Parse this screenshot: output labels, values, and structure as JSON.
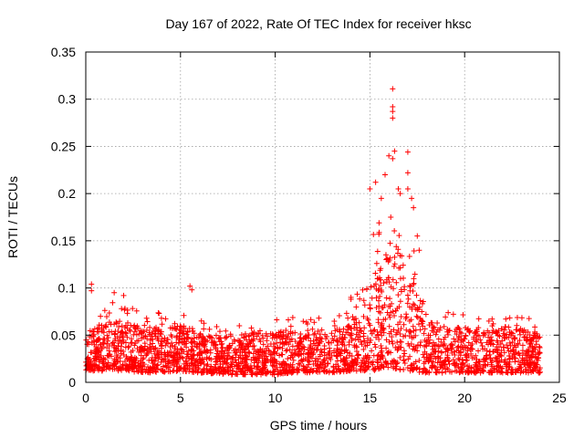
{
  "chart_data": {
    "type": "scatter",
    "title": "Day 167 of 2022, Rate Of TEC Index for receiver hksc",
    "xlabel": "GPS time / hours",
    "ylabel": "ROTI / TECUs",
    "xlim": [
      0,
      25
    ],
    "ylim": [
      0,
      0.35
    ],
    "x_ticks": [
      0,
      5,
      10,
      15,
      20,
      25
    ],
    "x_tick_labels": [
      "0",
      "5",
      "10",
      "15",
      "20",
      "25"
    ],
    "y_ticks": [
      0,
      0.05,
      0.1,
      0.15,
      0.2,
      0.25,
      0.3,
      0.35
    ],
    "y_tick_labels": [
      "0",
      "0.05",
      "0.1",
      "0.15",
      "0.2",
      "0.25",
      "0.3",
      "0.35"
    ],
    "grid": true,
    "marker": "+",
    "marker_color": "#ff0000",
    "series": [
      {
        "name": "ROTI",
        "envelope": [
          {
            "x": 0.0,
            "low": 0.012,
            "high": 0.06
          },
          {
            "x": 1.0,
            "low": 0.012,
            "high": 0.085
          },
          {
            "x": 2.0,
            "low": 0.012,
            "high": 0.085
          },
          {
            "x": 3.0,
            "low": 0.01,
            "high": 0.075
          },
          {
            "x": 4.0,
            "low": 0.01,
            "high": 0.075
          },
          {
            "x": 5.0,
            "low": 0.012,
            "high": 0.078
          },
          {
            "x": 6.0,
            "low": 0.01,
            "high": 0.07
          },
          {
            "x": 7.0,
            "low": 0.008,
            "high": 0.06
          },
          {
            "x": 8.0,
            "low": 0.008,
            "high": 0.065
          },
          {
            "x": 9.0,
            "low": 0.008,
            "high": 0.068
          },
          {
            "x": 10.0,
            "low": 0.008,
            "high": 0.07
          },
          {
            "x": 11.0,
            "low": 0.01,
            "high": 0.072
          },
          {
            "x": 12.0,
            "low": 0.01,
            "high": 0.072
          },
          {
            "x": 13.0,
            "low": 0.01,
            "high": 0.07
          },
          {
            "x": 14.0,
            "low": 0.012,
            "high": 0.08
          },
          {
            "x": 15.0,
            "low": 0.012,
            "high": 0.15
          },
          {
            "x": 16.0,
            "low": 0.015,
            "high": 0.19
          },
          {
            "x": 17.0,
            "low": 0.012,
            "high": 0.17
          },
          {
            "x": 18.0,
            "low": 0.01,
            "high": 0.09
          },
          {
            "x": 19.0,
            "low": 0.01,
            "high": 0.075
          },
          {
            "x": 20.0,
            "low": 0.01,
            "high": 0.075
          },
          {
            "x": 21.0,
            "low": 0.01,
            "high": 0.072
          },
          {
            "x": 22.0,
            "low": 0.01,
            "high": 0.075
          },
          {
            "x": 23.0,
            "low": 0.01,
            "high": 0.075
          },
          {
            "x": 24.0,
            "low": 0.01,
            "high": 0.065
          }
        ],
        "notable_points": [
          [
            0.3,
            0.104
          ],
          [
            0.3,
            0.097
          ],
          [
            1.5,
            0.095
          ],
          [
            2.0,
            0.092
          ],
          [
            5.5,
            0.102
          ],
          [
            5.6,
            0.098
          ],
          [
            14.0,
            0.09
          ],
          [
            14.0,
            0.088
          ],
          [
            15.0,
            0.205
          ],
          [
            15.3,
            0.212
          ],
          [
            15.6,
            0.195
          ],
          [
            15.8,
            0.22
          ],
          [
            16.0,
            0.24
          ],
          [
            16.1,
            0.175
          ],
          [
            16.2,
            0.311
          ],
          [
            16.2,
            0.292
          ],
          [
            16.2,
            0.287
          ],
          [
            16.2,
            0.28
          ],
          [
            16.3,
            0.245
          ],
          [
            16.2,
            0.237
          ],
          [
            16.5,
            0.205
          ],
          [
            16.6,
            0.2
          ],
          [
            17.0,
            0.244
          ],
          [
            17.0,
            0.222
          ],
          [
            17.0,
            0.205
          ],
          [
            17.2,
            0.195
          ],
          [
            17.3,
            0.185
          ],
          [
            17.5,
            0.155
          ],
          [
            17.6,
            0.14
          ]
        ]
      }
    ]
  }
}
